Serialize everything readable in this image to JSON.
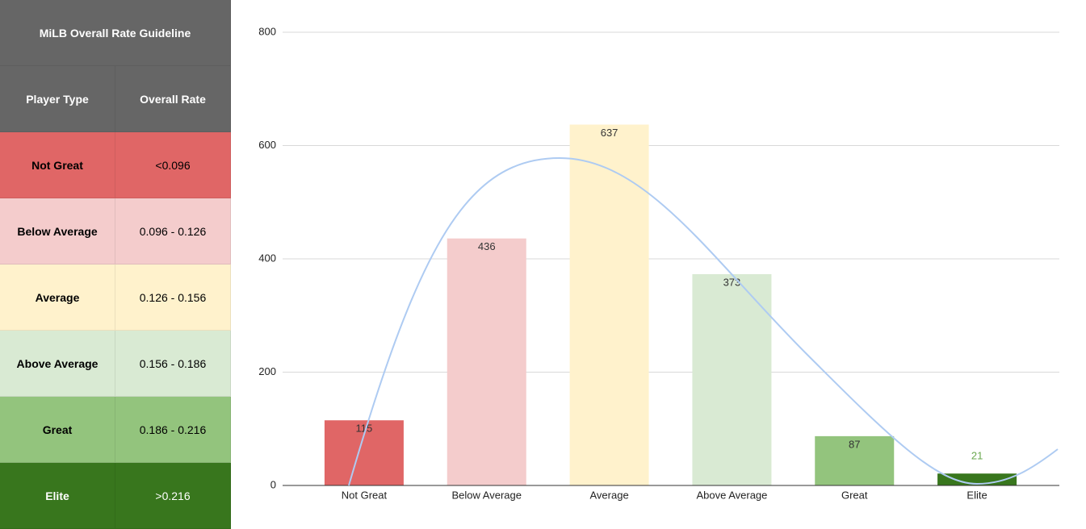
{
  "table": {
    "title": "MiLB Overall Rate Guideline",
    "columns": [
      "Player Type",
      "Overall Rate"
    ],
    "rows": [
      [
        "Not Great",
        "<0.096"
      ],
      [
        "Below Average",
        "0.096 - 0.126"
      ],
      [
        "Average",
        "0.126 - 0.156"
      ],
      [
        "Above Average",
        "0.156 - 0.186"
      ],
      [
        "Great",
        "0.186 - 0.216"
      ],
      [
        "Elite",
        ">0.216"
      ]
    ],
    "row_colors": [
      "#e06666",
      "#f4cccc",
      "#fff2cc",
      "#d9ead3",
      "#93c47d",
      "#38761d"
    ],
    "text_colors": [
      "#000000",
      "#000000",
      "#000000",
      "#000000",
      "#000000",
      "#ffffff"
    ],
    "header_color": "#666666"
  },
  "chart_data": {
    "type": "bar",
    "categories": [
      "Not Great",
      "Below Average",
      "Average",
      "Above Average",
      "Great",
      "Elite"
    ],
    "values": [
      115,
      436,
      637,
      373,
      87,
      21
    ],
    "colors": [
      "#e06666",
      "#f4cccc",
      "#fff2cc",
      "#d9ead3",
      "#93c47d",
      "#38761d"
    ],
    "ylim": [
      0,
      800
    ],
    "yticks": [
      0,
      200,
      400,
      600,
      800
    ],
    "grid": true
  }
}
